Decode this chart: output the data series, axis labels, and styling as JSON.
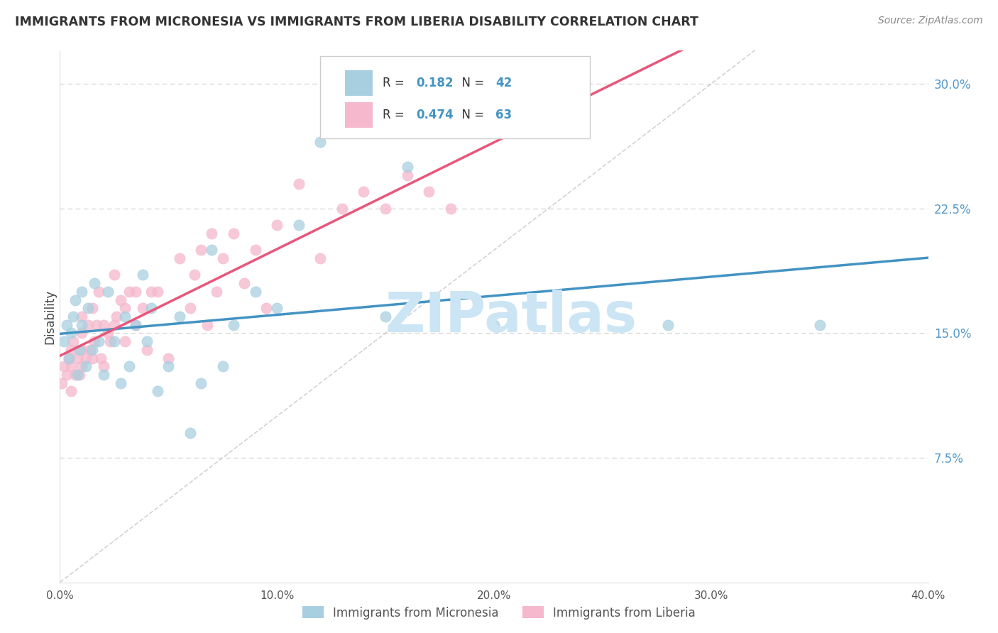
{
  "title": "IMMIGRANTS FROM MICRONESIA VS IMMIGRANTS FROM LIBERIA DISABILITY CORRELATION CHART",
  "source": "Source: ZipAtlas.com",
  "ylabel": "Disability",
  "x_min": 0.0,
  "x_max": 0.4,
  "y_min": 0.0,
  "y_max": 0.32,
  "x_ticks": [
    0.0,
    0.1,
    0.2,
    0.3,
    0.4
  ],
  "x_tick_labels": [
    "0.0%",
    "10.0%",
    "20.0%",
    "30.0%",
    "40.0%"
  ],
  "y_ticks": [
    0.075,
    0.15,
    0.225,
    0.3
  ],
  "y_tick_labels": [
    "7.5%",
    "15.0%",
    "22.5%",
    "30.0%"
  ],
  "color_micronesia": "#a8cfe0",
  "color_liberia": "#f5b8cc",
  "color_line_micronesia": "#4393c3",
  "color_line_liberia": "#e8567a",
  "color_diagonal": "#c8c8c8",
  "R_micronesia": 0.182,
  "N_micronesia": 42,
  "R_liberia": 0.474,
  "N_liberia": 63,
  "legend_label_micronesia": "Immigrants from Micronesia",
  "legend_label_liberia": "Immigrants from Liberia",
  "micronesia_x": [
    0.002,
    0.003,
    0.004,
    0.005,
    0.006,
    0.007,
    0.008,
    0.009,
    0.01,
    0.01,
    0.012,
    0.013,
    0.015,
    0.016,
    0.018,
    0.02,
    0.022,
    0.025,
    0.028,
    0.03,
    0.032,
    0.035,
    0.038,
    0.04,
    0.042,
    0.045,
    0.05,
    0.055,
    0.06,
    0.065,
    0.07,
    0.075,
    0.08,
    0.09,
    0.1,
    0.11,
    0.12,
    0.15,
    0.16,
    0.2,
    0.28,
    0.35
  ],
  "micronesia_y": [
    0.145,
    0.155,
    0.135,
    0.15,
    0.16,
    0.17,
    0.125,
    0.14,
    0.175,
    0.155,
    0.13,
    0.165,
    0.14,
    0.18,
    0.145,
    0.125,
    0.175,
    0.145,
    0.12,
    0.16,
    0.13,
    0.155,
    0.185,
    0.145,
    0.165,
    0.115,
    0.13,
    0.16,
    0.09,
    0.12,
    0.2,
    0.13,
    0.155,
    0.175,
    0.165,
    0.215,
    0.265,
    0.16,
    0.25,
    0.155,
    0.155,
    0.155
  ],
  "liberia_x": [
    0.001,
    0.002,
    0.003,
    0.004,
    0.005,
    0.005,
    0.005,
    0.006,
    0.007,
    0.008,
    0.009,
    0.01,
    0.01,
    0.01,
    0.01,
    0.012,
    0.013,
    0.014,
    0.015,
    0.015,
    0.016,
    0.017,
    0.018,
    0.019,
    0.02,
    0.02,
    0.022,
    0.023,
    0.025,
    0.025,
    0.026,
    0.028,
    0.03,
    0.03,
    0.032,
    0.035,
    0.035,
    0.038,
    0.04,
    0.042,
    0.045,
    0.05,
    0.055,
    0.06,
    0.062,
    0.065,
    0.068,
    0.07,
    0.072,
    0.075,
    0.08,
    0.085,
    0.09,
    0.095,
    0.1,
    0.11,
    0.12,
    0.13,
    0.14,
    0.15,
    0.16,
    0.17,
    0.18
  ],
  "liberia_y": [
    0.12,
    0.13,
    0.125,
    0.135,
    0.115,
    0.13,
    0.14,
    0.145,
    0.125,
    0.135,
    0.125,
    0.13,
    0.14,
    0.15,
    0.16,
    0.135,
    0.155,
    0.14,
    0.135,
    0.165,
    0.145,
    0.155,
    0.175,
    0.135,
    0.13,
    0.155,
    0.15,
    0.145,
    0.155,
    0.185,
    0.16,
    0.17,
    0.145,
    0.165,
    0.175,
    0.155,
    0.175,
    0.165,
    0.14,
    0.175,
    0.175,
    0.135,
    0.195,
    0.165,
    0.185,
    0.2,
    0.155,
    0.21,
    0.175,
    0.195,
    0.21,
    0.18,
    0.2,
    0.165,
    0.215,
    0.24,
    0.195,
    0.225,
    0.235,
    0.225,
    0.245,
    0.235,
    0.225
  ],
  "watermark": "ZIPatlas",
  "watermark_color": "#cce5f5",
  "background_color": "#ffffff",
  "grid_color": "#cccccc"
}
